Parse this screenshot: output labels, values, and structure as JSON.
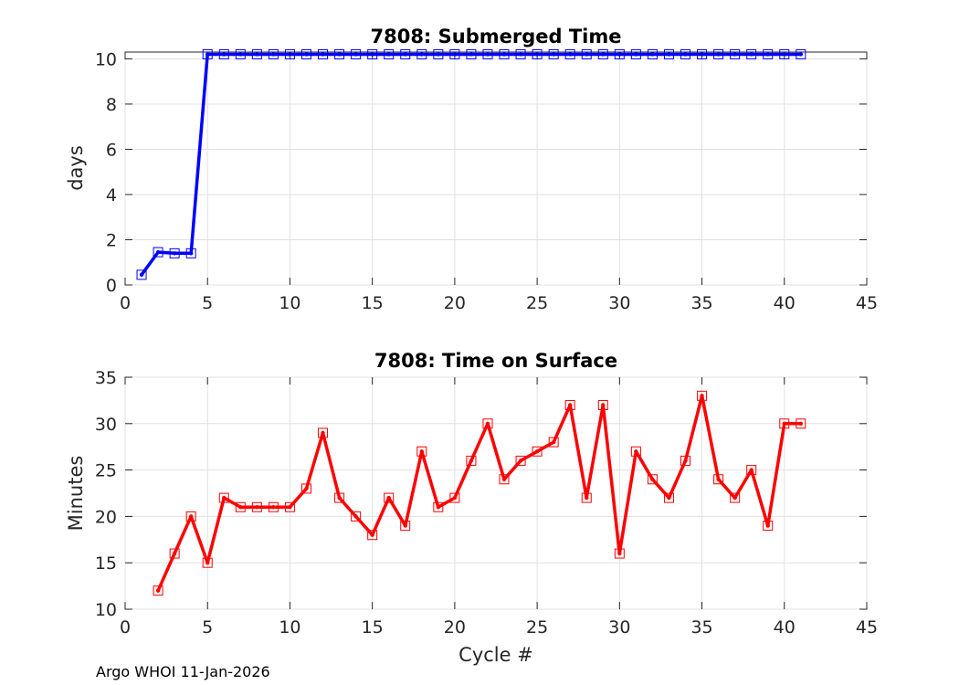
{
  "chart_data": [
    {
      "type": "line",
      "title": "7808: Submerged Time",
      "xlabel": "",
      "ylabel": "days",
      "xlim": [
        0,
        45
      ],
      "ylim": [
        0,
        10.3
      ],
      "xticks": [
        "0",
        "5",
        "10",
        "15",
        "20",
        "25",
        "30",
        "35",
        "40",
        "45"
      ],
      "yticks": [
        "0",
        "2",
        "4",
        "6",
        "8",
        "10"
      ],
      "grid": true,
      "color": "#0000ff",
      "series": [
        {
          "name": "Submerged Time",
          "x": [
            1,
            2,
            3,
            4,
            5,
            6,
            7,
            8,
            9,
            10,
            11,
            12,
            13,
            14,
            15,
            16,
            17,
            18,
            19,
            20,
            21,
            22,
            23,
            24,
            25,
            26,
            27,
            28,
            29,
            30,
            31,
            32,
            33,
            34,
            35,
            36,
            37,
            38,
            39,
            40,
            41
          ],
          "values": [
            0.45,
            1.45,
            1.4,
            1.4,
            10.2,
            10.2,
            10.2,
            10.2,
            10.2,
            10.2,
            10.2,
            10.2,
            10.2,
            10.2,
            10.2,
            10.2,
            10.2,
            10.2,
            10.2,
            10.2,
            10.2,
            10.2,
            10.2,
            10.2,
            10.2,
            10.2,
            10.2,
            10.2,
            10.2,
            10.2,
            10.2,
            10.2,
            10.2,
            10.2,
            10.2,
            10.2,
            10.2,
            10.2,
            10.2,
            10.2,
            10.2
          ]
        }
      ]
    },
    {
      "type": "line",
      "title": "7808: Time on Surface",
      "xlabel": "Cycle #",
      "ylabel": "Minutes",
      "xlim": [
        0,
        45
      ],
      "ylim": [
        10,
        35
      ],
      "xticks": [
        "0",
        "5",
        "10",
        "15",
        "20",
        "25",
        "30",
        "35",
        "40",
        "45"
      ],
      "yticks": [
        "10",
        "15",
        "20",
        "25",
        "30",
        "35"
      ],
      "grid": true,
      "color": "#ff0000",
      "series": [
        {
          "name": "Time on Surface",
          "x": [
            2,
            3,
            4,
            5,
            6,
            7,
            8,
            9,
            10,
            11,
            12,
            13,
            14,
            15,
            16,
            17,
            18,
            19,
            20,
            21,
            22,
            23,
            24,
            25,
            26,
            27,
            28,
            29,
            30,
            31,
            32,
            33,
            34,
            35,
            36,
            37,
            38,
            39,
            40,
            41
          ],
          "values": [
            12,
            16,
            20,
            15,
            22,
            21,
            21,
            21,
            21,
            23,
            29,
            22,
            20,
            18,
            22,
            19,
            27,
            21,
            22,
            26,
            30,
            24,
            26,
            27,
            28,
            32,
            22,
            32,
            16,
            27,
            24,
            22,
            26,
            33,
            24,
            22,
            25,
            19,
            30,
            30
          ]
        }
      ]
    }
  ],
  "footer": "Argo WHOI 11-Jan-2026"
}
